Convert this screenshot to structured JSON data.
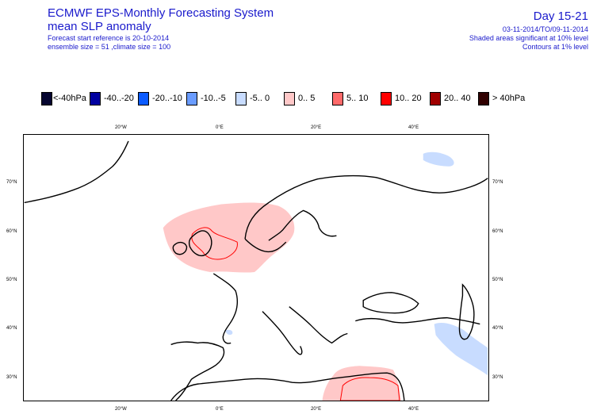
{
  "header": {
    "title_line1": "ECMWF EPS-Monthly Forecasting System",
    "title_line2": "mean SLP anomaly",
    "forecast_ref": "Forecast start reference is 20-10-2014",
    "ensemble": "ensemble size = 51  ,climate size = 100",
    "day_range": "Day 15-21",
    "date_range": "03-11-2014/TO/09-11-2014",
    "shaded_note": "Shaded areas significant at 10% level",
    "contour_note": "Contours at 1% level"
  },
  "legend": [
    {
      "label": "<-40hPa",
      "color": "#050530"
    },
    {
      "label": "-40..-20",
      "color": "#0000a0"
    },
    {
      "label": "-20..-10",
      "color": "#0a5aff"
    },
    {
      "label": "-10..-5",
      "color": "#6a9cff"
    },
    {
      "label": "-5..  0",
      "color": "#c8dcff"
    },
    {
      "label": "0..  5",
      "color": "#ffc8c8"
    },
    {
      "label": "5..  10",
      "color": "#ff6a6a"
    },
    {
      "label": "10..  20",
      "color": "#ff0000"
    },
    {
      "label": "20..  40",
      "color": "#a00000"
    },
    {
      "label": ">  40hPa",
      "color": "#300000"
    }
  ],
  "axes": {
    "top_lon": [
      "20°W",
      "0°E",
      "20°E",
      "40°E"
    ],
    "bottom_lon": [
      "20°W",
      "0°E",
      "20°E",
      "40°E"
    ],
    "lat_left": [
      "70°N",
      "60°N",
      "50°N",
      "40°N",
      "30°N"
    ],
    "lat_right": [
      "70°N",
      "60°N",
      "50°N",
      "40°N",
      "30°N"
    ]
  },
  "colors": {
    "positive_shade": "#ffc8c8",
    "negative_shade": "#c8dcff",
    "contour": "#ff0000",
    "coast": "#000000",
    "title_text": "#1a1acc"
  }
}
